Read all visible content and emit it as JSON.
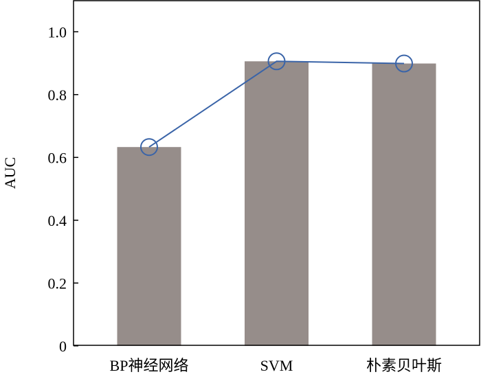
{
  "chart_data": {
    "type": "bar",
    "categories": [
      "BP神经网络",
      "SVM",
      "朴素贝叶斯"
    ],
    "values": [
      0.633,
      0.906,
      0.899
    ],
    "line_values": [
      0.633,
      0.906,
      0.899
    ],
    "title": "",
    "xlabel": "",
    "ylabel": "AUC",
    "ylim": [
      0,
      1.1
    ],
    "yticks": [
      0,
      0.2,
      0.4,
      0.6,
      0.8,
      1.0
    ],
    "ytick_labels": [
      "0",
      "0.2",
      "0.4",
      "0.6",
      "0.8",
      "1.0"
    ],
    "grid": false,
    "bar_color": "#968d8a",
    "line_color": "#3a64a8"
  }
}
